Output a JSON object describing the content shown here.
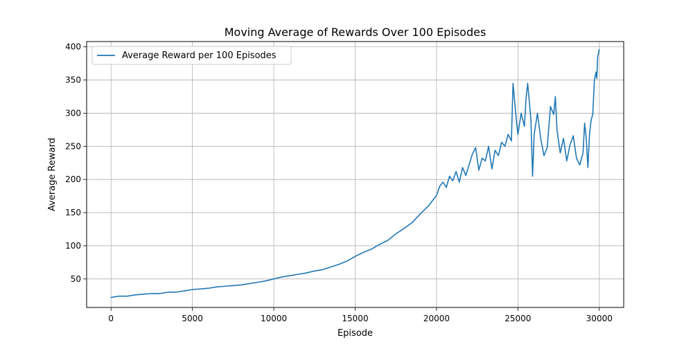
{
  "chart_data": {
    "type": "line",
    "title": "Moving Average of Rewards Over 100 Episodes",
    "xlabel": "Episode",
    "ylabel": "Average Reward",
    "xlim": [
      -1500,
      31500
    ],
    "ylim": [
      7,
      408
    ],
    "xticks": [
      0,
      5000,
      10000,
      15000,
      20000,
      25000,
      30000
    ],
    "yticks": [
      50,
      100,
      150,
      200,
      250,
      300,
      350,
      400
    ],
    "grid": true,
    "legend_position": "top-left",
    "series": [
      {
        "name": "Average Reward per 100 Episodes",
        "color": "#1f77b4",
        "points": [
          [
            0,
            22
          ],
          [
            200,
            23
          ],
          [
            500,
            24
          ],
          [
            1000,
            24
          ],
          [
            1500,
            26
          ],
          [
            2000,
            27
          ],
          [
            2500,
            28
          ],
          [
            3000,
            28
          ],
          [
            3500,
            30
          ],
          [
            4000,
            30
          ],
          [
            4500,
            32
          ],
          [
            5000,
            34
          ],
          [
            5500,
            35
          ],
          [
            6000,
            36
          ],
          [
            6500,
            38
          ],
          [
            7000,
            39
          ],
          [
            7500,
            40
          ],
          [
            8000,
            41
          ],
          [
            8500,
            43
          ],
          [
            9000,
            45
          ],
          [
            9500,
            47
          ],
          [
            10000,
            50
          ],
          [
            10500,
            53
          ],
          [
            11000,
            55
          ],
          [
            11500,
            57
          ],
          [
            12000,
            59
          ],
          [
            12500,
            62
          ],
          [
            13000,
            64
          ],
          [
            13500,
            68
          ],
          [
            14000,
            72
          ],
          [
            14500,
            77
          ],
          [
            15000,
            84
          ],
          [
            15500,
            90
          ],
          [
            16000,
            95
          ],
          [
            16500,
            102
          ],
          [
            17000,
            108
          ],
          [
            17500,
            118
          ],
          [
            18000,
            126
          ],
          [
            18500,
            135
          ],
          [
            19000,
            148
          ],
          [
            19500,
            160
          ],
          [
            20000,
            176
          ],
          [
            20200,
            190
          ],
          [
            20400,
            196
          ],
          [
            20600,
            188
          ],
          [
            20800,
            205
          ],
          [
            21000,
            198
          ],
          [
            21200,
            212
          ],
          [
            21400,
            196
          ],
          [
            21600,
            218
          ],
          [
            21800,
            206
          ],
          [
            22000,
            222
          ],
          [
            22200,
            238
          ],
          [
            22400,
            248
          ],
          [
            22600,
            214
          ],
          [
            22800,
            232
          ],
          [
            23000,
            228
          ],
          [
            23200,
            250
          ],
          [
            23400,
            216
          ],
          [
            23600,
            244
          ],
          [
            23800,
            236
          ],
          [
            24000,
            256
          ],
          [
            24200,
            250
          ],
          [
            24400,
            268
          ],
          [
            24600,
            258
          ],
          [
            24700,
            345
          ],
          [
            24800,
            318
          ],
          [
            24900,
            290
          ],
          [
            25000,
            268
          ],
          [
            25200,
            300
          ],
          [
            25400,
            280
          ],
          [
            25500,
            322
          ],
          [
            25600,
            345
          ],
          [
            25800,
            290
          ],
          [
            25900,
            205
          ],
          [
            26000,
            268
          ],
          [
            26200,
            300
          ],
          [
            26400,
            262
          ],
          [
            26600,
            236
          ],
          [
            26800,
            248
          ],
          [
            27000,
            310
          ],
          [
            27200,
            298
          ],
          [
            27300,
            325
          ],
          [
            27400,
            275
          ],
          [
            27600,
            240
          ],
          [
            27800,
            262
          ],
          [
            28000,
            228
          ],
          [
            28200,
            252
          ],
          [
            28400,
            266
          ],
          [
            28600,
            232
          ],
          [
            28800,
            222
          ],
          [
            29000,
            240
          ],
          [
            29100,
            285
          ],
          [
            29200,
            262
          ],
          [
            29300,
            218
          ],
          [
            29400,
            268
          ],
          [
            29500,
            290
          ],
          [
            29600,
            298
          ],
          [
            29700,
            350
          ],
          [
            29800,
            362
          ],
          [
            29850,
            352
          ],
          [
            29900,
            385
          ],
          [
            30000,
            396
          ]
        ]
      }
    ]
  }
}
